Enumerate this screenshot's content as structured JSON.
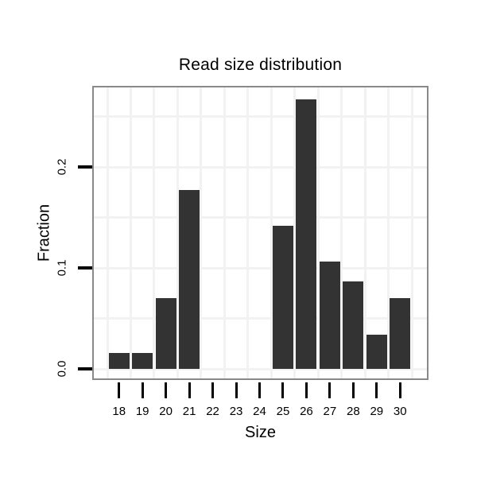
{
  "title": "Read size distribution",
  "chart_data": {
    "type": "bar",
    "title": "Read size distribution",
    "xlabel": "Size",
    "ylabel": "Fraction",
    "categories": [
      "18",
      "19",
      "20",
      "21",
      "22",
      "23",
      "24",
      "25",
      "26",
      "27",
      "28",
      "29",
      "30"
    ],
    "values": [
      0.016,
      0.016,
      0.07,
      0.177,
      0,
      0,
      0,
      0.142,
      0.267,
      0.106,
      0.087,
      0.034,
      0.07
    ],
    "ylim": [
      0,
      0.28
    ],
    "yticks": [
      0.0,
      0.1,
      0.2
    ],
    "ytick_labels": [
      "0.0",
      "0.1",
      "0.2"
    ],
    "grid": "on",
    "grid_interval_y": 0.05,
    "grid_vertical": "category-boundaries",
    "legend_position": "none",
    "bar_color": "#333333"
  },
  "colors": {
    "bar": "#333333",
    "panel_border": "#898989",
    "gridline": "#f2f2f2",
    "tick": "#000000",
    "text": "#000000",
    "background": "#ffffff"
  }
}
